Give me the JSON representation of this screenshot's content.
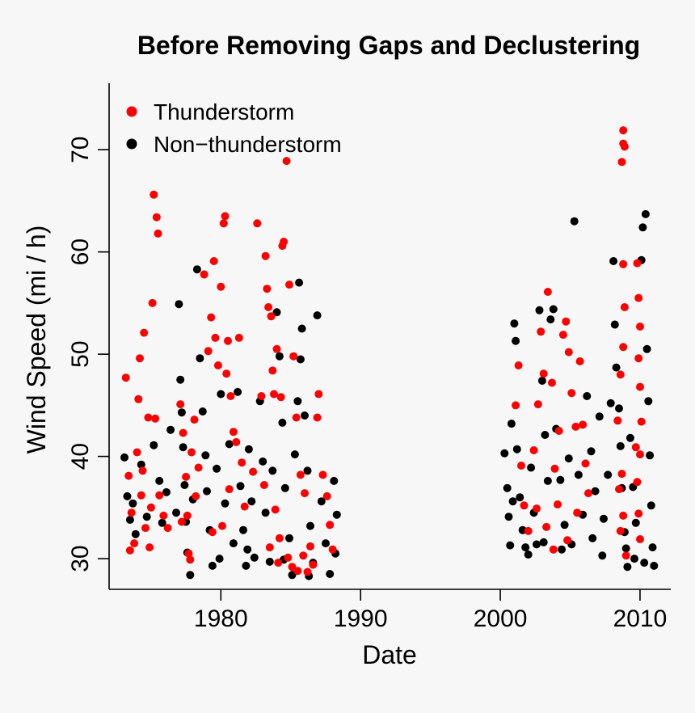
{
  "chart_data": {
    "type": "scatter",
    "title": "Before Removing Gaps and Declustering",
    "xlabel": "Date",
    "ylabel": "Wind Speed (mi / h)",
    "xlim": [
      1972.0,
      2012.2
    ],
    "ylim": [
      27.0,
      76.5
    ],
    "x_ticks": [
      1980,
      1990,
      2000,
      2010
    ],
    "y_ticks": [
      30,
      40,
      50,
      60,
      70
    ],
    "grid": false,
    "legend_position": "top-left",
    "series": [
      {
        "name": "Thunderstorm",
        "color": "#ff0000",
        "points": [
          [
            1973.2,
            47.7
          ],
          [
            1973.4,
            38.1
          ],
          [
            1973.6,
            34.5
          ],
          [
            1973.8,
            31.5
          ],
          [
            1974.0,
            40.4
          ],
          [
            1974.1,
            45.6
          ],
          [
            1974.2,
            49.6
          ],
          [
            1974.3,
            36.2
          ],
          [
            1974.5,
            52.1
          ],
          [
            1974.6,
            33.0
          ],
          [
            1974.8,
            43.8
          ],
          [
            1974.9,
            31.1
          ],
          [
            1975.1,
            55.0
          ],
          [
            1975.2,
            65.6
          ],
          [
            1975.4,
            63.4
          ],
          [
            1975.5,
            61.8
          ],
          [
            1975.3,
            43.7
          ],
          [
            1975.6,
            36.2
          ],
          [
            1975.9,
            34.2
          ],
          [
            1976.2,
            33.0
          ],
          [
            1973.5,
            30.8
          ],
          [
            1974.4,
            38.6
          ],
          [
            1975.0,
            35.0
          ],
          [
            1977.1,
            45.1
          ],
          [
            1977.3,
            42.3
          ],
          [
            1977.5,
            38.0
          ],
          [
            1977.6,
            34.2
          ],
          [
            1977.7,
            30.5
          ],
          [
            1977.9,
            40.4
          ],
          [
            1978.1,
            43.6
          ],
          [
            1978.4,
            38.9
          ],
          [
            1978.8,
            57.8
          ],
          [
            1979.1,
            50.3
          ],
          [
            1979.3,
            53.6
          ],
          [
            1979.5,
            59.1
          ],
          [
            1979.6,
            51.6
          ],
          [
            1979.8,
            48.9
          ],
          [
            1980.0,
            56.6
          ],
          [
            1980.2,
            62.8
          ],
          [
            1980.3,
            63.5
          ],
          [
            1980.4,
            48.1
          ],
          [
            1980.5,
            51.3
          ],
          [
            1980.7,
            45.9
          ],
          [
            1980.9,
            42.4
          ],
          [
            1981.1,
            41.4
          ],
          [
            1981.3,
            51.6
          ],
          [
            1981.5,
            39.4
          ],
          [
            1981.7,
            35.1
          ],
          [
            1980.6,
            36.8
          ],
          [
            1980.1,
            33.2
          ],
          [
            1979.4,
            32.6
          ],
          [
            1982.3,
            38.5
          ],
          [
            1982.6,
            62.8
          ],
          [
            1982.9,
            45.9
          ],
          [
            1983.2,
            59.6
          ],
          [
            1983.3,
            56.4
          ],
          [
            1983.4,
            54.6
          ],
          [
            1983.6,
            53.7
          ],
          [
            1983.7,
            48.4
          ],
          [
            1983.8,
            46.1
          ],
          [
            1984.0,
            50.5
          ],
          [
            1984.3,
            45.8
          ],
          [
            1984.4,
            60.6
          ],
          [
            1984.5,
            61.0
          ],
          [
            1984.7,
            68.9
          ],
          [
            1984.9,
            56.8
          ],
          [
            1985.2,
            49.8
          ],
          [
            1985.4,
            43.8
          ],
          [
            1985.7,
            38.2
          ],
          [
            1986.0,
            36.4
          ],
          [
            1983.9,
            34.8
          ],
          [
            1984.2,
            32.0
          ],
          [
            1984.8,
            30.1
          ],
          [
            1985.5,
            28.8
          ],
          [
            1985.9,
            30.3
          ],
          [
            1986.4,
            31.2
          ],
          [
            1986.9,
            43.8
          ],
          [
            1987.0,
            46.1
          ],
          [
            1987.3,
            38.2
          ],
          [
            1987.6,
            36.1
          ],
          [
            1987.8,
            33.3
          ],
          [
            1988.0,
            30.9
          ],
          [
            2001.1,
            45.0
          ],
          [
            2001.3,
            48.9
          ],
          [
            2001.5,
            39.1
          ],
          [
            2001.7,
            35.2
          ],
          [
            2002.0,
            32.7
          ],
          [
            2002.4,
            40.6
          ],
          [
            2002.7,
            45.1
          ],
          [
            2002.9,
            52.2
          ],
          [
            2003.1,
            48.1
          ],
          [
            2003.4,
            56.1
          ],
          [
            2003.7,
            47.2
          ],
          [
            2003.9,
            38.8
          ],
          [
            2004.2,
            42.5
          ],
          [
            2004.5,
            51.9
          ],
          [
            2004.7,
            53.2
          ],
          [
            2004.9,
            50.2
          ],
          [
            2005.1,
            46.2
          ],
          [
            2005.4,
            42.9
          ],
          [
            2005.7,
            49.3
          ],
          [
            2005.9,
            43.1
          ],
          [
            2006.1,
            39.3
          ],
          [
            2006.3,
            36.4
          ],
          [
            2003.3,
            33.1
          ],
          [
            2004.8,
            31.8
          ],
          [
            2005.5,
            34.5
          ],
          [
            2008.4,
            43.5
          ],
          [
            2008.6,
            48.0
          ],
          [
            2008.8,
            50.7
          ],
          [
            2008.9,
            54.6
          ],
          [
            2008.8,
            58.8
          ],
          [
            2008.7,
            68.8
          ],
          [
            2008.8,
            70.6
          ],
          [
            2008.8,
            71.9
          ],
          [
            2008.9,
            70.3
          ],
          [
            2008.7,
            38.3
          ],
          [
            2008.8,
            34.2
          ],
          [
            2009.0,
            30.3
          ],
          [
            2009.8,
            58.9
          ],
          [
            2009.9,
            55.5
          ],
          [
            2010.0,
            52.7
          ],
          [
            2009.9,
            49.6
          ],
          [
            2010.0,
            46.8
          ],
          [
            2010.1,
            43.4
          ],
          [
            2010.0,
            40.2
          ],
          [
            2009.8,
            37.5
          ],
          [
            2009.9,
            34.4
          ],
          [
            2010.0,
            31.9
          ],
          [
            1977.2,
            33.6
          ],
          [
            1977.8,
            29.9
          ],
          [
            1978.2,
            36.1
          ],
          [
            1983.1,
            37.2
          ],
          [
            1983.5,
            31.1
          ],
          [
            1984.1,
            29.6
          ],
          [
            1985.1,
            29.2
          ],
          [
            1986.2,
            28.7
          ],
          [
            1986.6,
            29.4
          ],
          [
            2002.6,
            34.9
          ],
          [
            2003.8,
            30.9
          ],
          [
            2004.1,
            35.3
          ],
          [
            2008.5,
            36.8
          ],
          [
            2008.6,
            32.7
          ],
          [
            2009.7,
            40.9
          ]
        ]
      },
      {
        "name": "Non−thunderstorm",
        "color": "#000000",
        "points": [
          [
            1973.1,
            39.9
          ],
          [
            1973.3,
            36.1
          ],
          [
            1973.5,
            33.8
          ],
          [
            1973.7,
            35.4
          ],
          [
            1973.9,
            32.4
          ],
          [
            1974.3,
            39.2
          ],
          [
            1974.7,
            34.1
          ],
          [
            1975.2,
            41.1
          ],
          [
            1975.6,
            37.6
          ],
          [
            1975.8,
            33.5
          ],
          [
            1976.1,
            36.5
          ],
          [
            1976.4,
            42.6
          ],
          [
            1977.0,
            54.9
          ],
          [
            1977.1,
            47.5
          ],
          [
            1977.2,
            44.3
          ],
          [
            1977.3,
            40.9
          ],
          [
            1977.4,
            37.2
          ],
          [
            1977.5,
            33.6
          ],
          [
            1977.6,
            30.6
          ],
          [
            1977.8,
            28.4
          ],
          [
            1978.0,
            35.8
          ],
          [
            1978.3,
            58.3
          ],
          [
            1978.5,
            49.6
          ],
          [
            1978.7,
            44.4
          ],
          [
            1978.9,
            40.1
          ],
          [
            1979.0,
            36.6
          ],
          [
            1979.2,
            32.8
          ],
          [
            1979.4,
            29.3
          ],
          [
            1979.7,
            38.8
          ],
          [
            1980.0,
            46.1
          ],
          [
            1980.3,
            35.4
          ],
          [
            1980.6,
            41.2
          ],
          [
            1980.9,
            31.5
          ],
          [
            1981.2,
            46.3
          ],
          [
            1981.4,
            37.1
          ],
          [
            1981.6,
            32.8
          ],
          [
            1981.8,
            29.3
          ],
          [
            1982.0,
            40.7
          ],
          [
            1982.2,
            35.6
          ],
          [
            1982.4,
            30.1
          ],
          [
            1982.8,
            45.4
          ],
          [
            1983.0,
            39.5
          ],
          [
            1983.2,
            34.5
          ],
          [
            1983.5,
            29.7
          ],
          [
            1983.7,
            38.6
          ],
          [
            1984.0,
            54.1
          ],
          [
            1984.2,
            49.8
          ],
          [
            1984.4,
            43.3
          ],
          [
            1984.6,
            36.9
          ],
          [
            1984.9,
            32.0
          ],
          [
            1985.1,
            28.4
          ],
          [
            1985.3,
            40.2
          ],
          [
            1985.5,
            45.4
          ],
          [
            1985.6,
            57.0
          ],
          [
            1985.8,
            52.5
          ],
          [
            1985.7,
            49.5
          ],
          [
            1986.0,
            44.0
          ],
          [
            1986.2,
            38.6
          ],
          [
            1986.4,
            33.2
          ],
          [
            1986.6,
            29.6
          ],
          [
            1986.9,
            53.8
          ],
          [
            1987.2,
            35.6
          ],
          [
            1987.5,
            31.5
          ],
          [
            1987.8,
            28.5
          ],
          [
            1988.1,
            37.6
          ],
          [
            1988.3,
            34.3
          ],
          [
            1988.2,
            30.5
          ],
          [
            2000.3,
            40.3
          ],
          [
            2000.5,
            36.9
          ],
          [
            2000.6,
            34.1
          ],
          [
            2000.7,
            31.3
          ],
          [
            2000.8,
            43.2
          ],
          [
            2001.0,
            53.0
          ],
          [
            2001.1,
            51.3
          ],
          [
            2001.2,
            40.7
          ],
          [
            2001.4,
            36.0
          ],
          [
            2001.6,
            32.8
          ],
          [
            2001.8,
            31.1
          ],
          [
            2002.2,
            38.9
          ],
          [
            2002.4,
            34.5
          ],
          [
            2002.6,
            31.4
          ],
          [
            2002.8,
            54.3
          ],
          [
            2003.0,
            47.4
          ],
          [
            2003.2,
            42.1
          ],
          [
            2003.4,
            37.6
          ],
          [
            2003.6,
            53.4
          ],
          [
            2003.8,
            54.4
          ],
          [
            2004.0,
            42.7
          ],
          [
            2004.3,
            37.7
          ],
          [
            2004.6,
            33.3
          ],
          [
            2004.9,
            39.8
          ],
          [
            2005.3,
            63.0
          ],
          [
            2005.6,
            38.2
          ],
          [
            2005.9,
            34.3
          ],
          [
            2006.2,
            45.9
          ],
          [
            2006.5,
            40.5
          ],
          [
            2006.8,
            36.6
          ],
          [
            2007.1,
            43.9
          ],
          [
            2007.4,
            33.9
          ],
          [
            2007.7,
            38.2
          ],
          [
            2007.9,
            45.2
          ],
          [
            2008.1,
            59.1
          ],
          [
            2008.2,
            52.9
          ],
          [
            2008.3,
            48.7
          ],
          [
            2008.5,
            44.7
          ],
          [
            2008.6,
            41.0
          ],
          [
            2008.7,
            36.9
          ],
          [
            2008.9,
            32.6
          ],
          [
            2009.1,
            29.2
          ],
          [
            2009.3,
            41.8
          ],
          [
            2009.5,
            37.0
          ],
          [
            2009.7,
            33.5
          ],
          [
            2010.1,
            59.2
          ],
          [
            2010.2,
            62.4
          ],
          [
            2010.4,
            63.7
          ],
          [
            2010.5,
            50.5
          ],
          [
            2010.6,
            45.4
          ],
          [
            2010.7,
            40.1
          ],
          [
            2010.8,
            35.2
          ],
          [
            2010.9,
            31.1
          ],
          [
            2011.0,
            29.3
          ],
          [
            2007.3,
            30.3
          ],
          [
            2006.6,
            32.0
          ],
          [
            2005.1,
            31.4
          ],
          [
            2004.4,
            30.9
          ],
          [
            2003.1,
            31.6
          ],
          [
            2002.0,
            30.4
          ],
          [
            2000.9,
            35.6
          ],
          [
            2009.0,
            31.0
          ],
          [
            2009.6,
            30.0
          ],
          [
            2010.3,
            29.6
          ],
          [
            1976.8,
            34.5
          ],
          [
            1979.9,
            30.0
          ],
          [
            1981.9,
            30.9
          ],
          [
            1984.5,
            29.9
          ],
          [
            1986.3,
            28.3
          ]
        ]
      }
    ]
  }
}
